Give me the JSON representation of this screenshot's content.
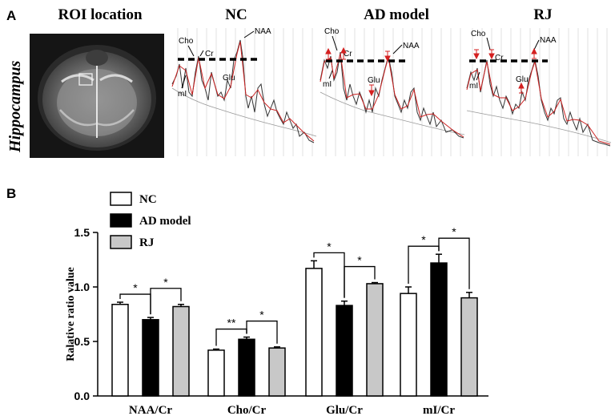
{
  "panel_a": {
    "letter": "A",
    "side_label": "Hippocampus",
    "roi_title": "ROI location",
    "spectra": [
      {
        "title": "NC",
        "labels": [
          "Cho",
          "Cr",
          "NAA",
          "mI",
          "Glu"
        ],
        "arrows": []
      },
      {
        "title": "AD model",
        "labels": [
          "Cho",
          "Cr",
          "NAA",
          "mI",
          "Glu"
        ],
        "arrows": [
          "up",
          "up",
          "down",
          "down"
        ]
      },
      {
        "title": "RJ",
        "labels": [
          "Cho",
          "Cr",
          "NAA",
          "mI",
          "Glu"
        ],
        "arrows": [
          "down",
          "down",
          "up",
          "up"
        ]
      }
    ]
  },
  "panel_b": {
    "letter": "B",
    "legend": [
      {
        "name": "NC",
        "color": "#ffffff"
      },
      {
        "name": "AD model",
        "color": "#000000"
      },
      {
        "name": "RJ",
        "color": "#c8c8c8"
      }
    ]
  },
  "chart_data": {
    "type": "bar",
    "categories": [
      "NAA/Cr",
      "Cho/Cr",
      "Glu/Cr",
      "mI/Cr"
    ],
    "series": [
      {
        "name": "NC",
        "values": [
          0.84,
          0.42,
          1.17,
          0.94
        ],
        "errors": [
          0.02,
          0.01,
          0.07,
          0.06
        ],
        "color": "#ffffff"
      },
      {
        "name": "AD model",
        "values": [
          0.7,
          0.52,
          0.83,
          1.22
        ],
        "errors": [
          0.02,
          0.02,
          0.04,
          0.08
        ],
        "color": "#000000"
      },
      {
        "name": "RJ",
        "values": [
          0.82,
          0.44,
          1.03,
          0.9
        ],
        "errors": [
          0.02,
          0.01,
          0.01,
          0.05
        ],
        "color": "#c8c8c8"
      }
    ],
    "ylabel": "Ralative ratio value",
    "ylim": [
      0,
      1.5
    ],
    "yticks": [
      "0.0",
      "0.5",
      "1.0",
      "1.5"
    ],
    "significance": [
      {
        "category": 0,
        "pairs": [
          [
            "NC",
            "AD model",
            "*"
          ],
          [
            "AD model",
            "RJ",
            "*"
          ]
        ]
      },
      {
        "category": 1,
        "pairs": [
          [
            "NC",
            "AD model",
            "**"
          ],
          [
            "AD model",
            "RJ",
            "*"
          ]
        ]
      },
      {
        "category": 2,
        "pairs": [
          [
            "NC",
            "AD model",
            "*"
          ],
          [
            "AD model",
            "RJ",
            "*"
          ]
        ]
      },
      {
        "category": 3,
        "pairs": [
          [
            "NC",
            "AD model",
            "*"
          ],
          [
            "AD model",
            "RJ",
            "*"
          ]
        ]
      }
    ]
  }
}
